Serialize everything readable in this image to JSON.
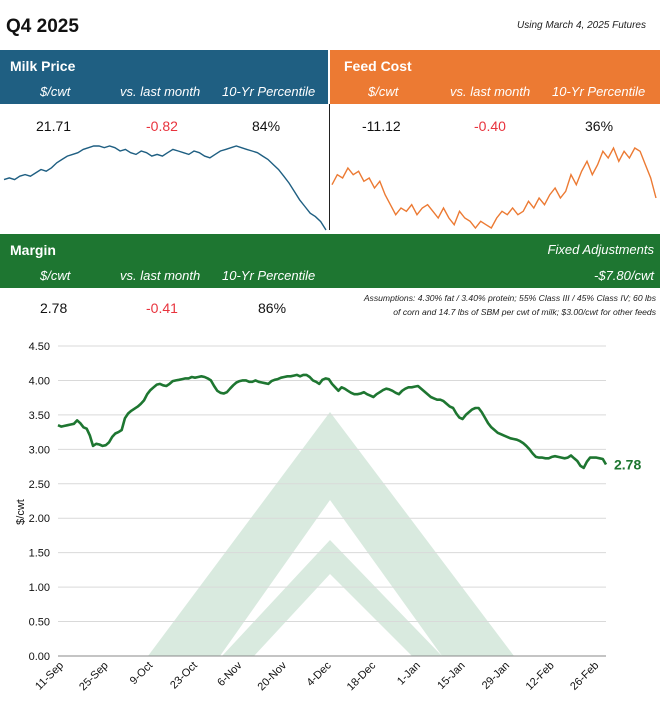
{
  "header": {
    "title": "Q4 2025",
    "futures_note": "Using March 4, 2025 Futures"
  },
  "colors": {
    "milk": "#1f5f82",
    "feed": "#ec7a33",
    "margin": "#1e7631",
    "negative": "#e8333d",
    "watermark": "#d9eadf"
  },
  "milk": {
    "name": "Milk Price",
    "unit_label": "$/cwt",
    "vs_label": "vs. last month",
    "pct_label": "10-Yr Percentile",
    "value": "21.71",
    "change": "-0.82",
    "percentile": "84%"
  },
  "feed": {
    "name": "Feed Cost",
    "unit_label": "$/cwt",
    "vs_label": "vs. last month",
    "pct_label": "10-Yr Percentile",
    "value": "-11.12",
    "change": "-0.40",
    "percentile": "36%"
  },
  "margin": {
    "name": "Margin",
    "unit_label": "$/cwt",
    "vs_label": "vs. last month",
    "pct_label": "10-Yr Percentile",
    "value": "2.78",
    "change": "-0.41",
    "percentile": "86%",
    "fixed_label": "Fixed Adjustments",
    "fixed_value": "-$7.80/cwt",
    "assumptions_line1": "Assumptions: 4.30% fat / 3.40% protein; 55% Class III / 45% Class IV; 60 lbs",
    "assumptions_line2": "of corn and 14.7 lbs of SBM per cwt of milk; $3.00/cwt for other feeds"
  },
  "chart_data": [
    {
      "type": "line",
      "title": "Milk Price",
      "values": [
        20.6,
        20.7,
        20.6,
        20.8,
        20.9,
        20.8,
        21.0,
        21.2,
        21.1,
        21.3,
        21.6,
        21.8,
        22.0,
        22.1,
        22.2,
        22.4,
        22.5,
        22.6,
        22.6,
        22.5,
        22.6,
        22.5,
        22.3,
        22.4,
        22.2,
        22.1,
        22.3,
        22.2,
        22.0,
        22.1,
        22.0,
        22.2,
        22.4,
        22.3,
        22.2,
        22.1,
        22.3,
        22.2,
        22.0,
        21.9,
        22.1,
        22.3,
        22.4,
        22.5,
        22.6,
        22.5,
        22.4,
        22.3,
        22.2,
        22.0,
        21.8,
        21.5,
        21.2,
        20.8,
        20.4,
        19.9,
        19.4,
        19.0,
        18.6,
        18.4,
        18.1,
        17.6
      ]
    },
    {
      "type": "line",
      "title": "Feed Cost",
      "values": [
        -11.6,
        -11.3,
        -11.4,
        -11.1,
        -11.3,
        -11.2,
        -11.5,
        -11.4,
        -11.7,
        -11.5,
        -11.9,
        -12.2,
        -12.5,
        -12.3,
        -12.4,
        -12.2,
        -12.5,
        -12.3,
        -12.2,
        -12.4,
        -12.6,
        -12.3,
        -12.6,
        -12.8,
        -12.4,
        -12.6,
        -12.7,
        -12.9,
        -12.7,
        -12.8,
        -12.9,
        -12.6,
        -12.4,
        -12.5,
        -12.3,
        -12.5,
        -12.4,
        -12.1,
        -12.3,
        -12.0,
        -12.2,
        -11.9,
        -11.7,
        -12.0,
        -11.8,
        -11.3,
        -11.6,
        -11.2,
        -10.9,
        -11.3,
        -11.0,
        -10.6,
        -10.8,
        -10.5,
        -10.9,
        -10.6,
        -10.8,
        -10.5,
        -10.6,
        -11.0,
        -11.4,
        -12.0
      ]
    },
    {
      "type": "line",
      "title": "Margin",
      "xlabel": "",
      "ylabel": "$/cwt",
      "ylim": [
        0,
        4.5
      ],
      "yticks": [
        "0.00",
        "0.50",
        "1.00",
        "1.50",
        "2.00",
        "2.50",
        "3.00",
        "3.50",
        "4.00",
        "4.50"
      ],
      "categories": [
        "11-Sep",
        "25-Sep",
        "9-Oct",
        "23-Oct",
        "6-Nov",
        "20-Nov",
        "4-Dec",
        "18-Dec",
        "1-Jan",
        "15-Jan",
        "29-Jan",
        "12-Feb",
        "26-Feb"
      ],
      "end_label": "2.78",
      "series": [
        {
          "name": "Margin",
          "x": [
            0,
            1,
            2,
            3,
            4,
            5,
            6,
            7,
            8,
            9,
            10,
            11,
            12,
            13,
            14,
            15,
            16,
            17,
            18,
            19,
            20,
            21,
            22,
            23,
            24,
            25,
            26,
            27,
            28,
            29,
            30,
            31,
            32,
            33,
            34,
            35,
            36,
            37,
            38,
            39,
            40,
            41,
            42,
            43,
            44,
            45,
            46,
            47,
            48,
            49,
            50,
            51,
            52,
            53,
            54,
            55,
            56,
            57,
            58,
            59,
            60,
            61,
            62,
            63,
            64,
            65,
            66,
            67,
            68,
            69,
            70,
            71,
            72,
            73,
            74,
            75,
            76,
            77,
            78,
            79,
            80,
            81,
            82,
            83,
            84,
            85,
            86,
            87,
            88,
            89,
            90,
            91,
            92,
            93,
            94,
            95,
            96,
            97,
            98,
            99,
            100,
            101,
            102,
            103,
            104,
            105,
            106,
            107,
            108,
            109,
            110,
            111,
            112,
            113,
            114,
            115,
            116,
            117,
            118,
            119,
            120,
            121,
            122,
            123,
            124,
            125,
            126,
            127,
            128,
            129,
            130,
            131,
            132,
            133,
            134,
            135,
            136,
            137,
            138,
            139,
            140,
            141,
            142,
            143,
            144,
            145,
            146,
            147,
            148,
            149,
            150,
            151,
            152,
            153,
            154,
            155,
            156,
            157,
            158,
            159,
            160,
            161,
            162,
            163,
            164,
            165,
            166,
            167,
            168,
            169,
            170,
            171,
            172
          ],
          "values": [
            3.35,
            3.33,
            3.34,
            3.35,
            3.36,
            3.37,
            3.42,
            3.38,
            3.32,
            3.3,
            3.2,
            3.05,
            3.08,
            3.07,
            3.05,
            3.06,
            3.1,
            3.18,
            3.23,
            3.25,
            3.28,
            3.45,
            3.52,
            3.56,
            3.59,
            3.62,
            3.66,
            3.71,
            3.8,
            3.86,
            3.9,
            3.94,
            3.95,
            3.93,
            3.92,
            3.95,
            3.99,
            4.0,
            4.01,
            4.02,
            4.03,
            4.03,
            4.05,
            4.04,
            4.05,
            4.06,
            4.05,
            4.03,
            4.0,
            3.92,
            3.85,
            3.82,
            3.81,
            3.83,
            3.88,
            3.93,
            3.97,
            3.99,
            4.0,
            4.0,
            3.98,
            3.98,
            4.0,
            3.98,
            3.97,
            3.96,
            3.95,
            3.99,
            4.01,
            4.02,
            4.04,
            4.05,
            4.06,
            4.06,
            4.07,
            4.08,
            4.06,
            4.08,
            4.08,
            4.05,
            4.0,
            3.98,
            3.95,
            4.01,
            4.03,
            4.02,
            3.95,
            3.9,
            3.85,
            3.9,
            3.88,
            3.85,
            3.82,
            3.8,
            3.8,
            3.81,
            3.83,
            3.8,
            3.78,
            3.76,
            3.8,
            3.83,
            3.86,
            3.88,
            3.87,
            3.85,
            3.82,
            3.8,
            3.85,
            3.88,
            3.9,
            3.9,
            3.91,
            3.92,
            3.88,
            3.84,
            3.8,
            3.76,
            3.74,
            3.72,
            3.72,
            3.7,
            3.66,
            3.62,
            3.6,
            3.52,
            3.46,
            3.44,
            3.5,
            3.54,
            3.58,
            3.6,
            3.6,
            3.54,
            3.46,
            3.38,
            3.32,
            3.28,
            3.24,
            3.22,
            3.2,
            3.18,
            3.16,
            3.15,
            3.14,
            3.12,
            3.09,
            3.05,
            3.0,
            2.94,
            2.89,
            2.88,
            2.88,
            2.87,
            2.87,
            2.89,
            2.9,
            2.89,
            2.88,
            2.87,
            2.88,
            2.91,
            2.87,
            2.83,
            2.76,
            2.73,
            2.82,
            2.88,
            2.88,
            2.88,
            2.87,
            2.86,
            2.78
          ]
        }
      ]
    }
  ]
}
